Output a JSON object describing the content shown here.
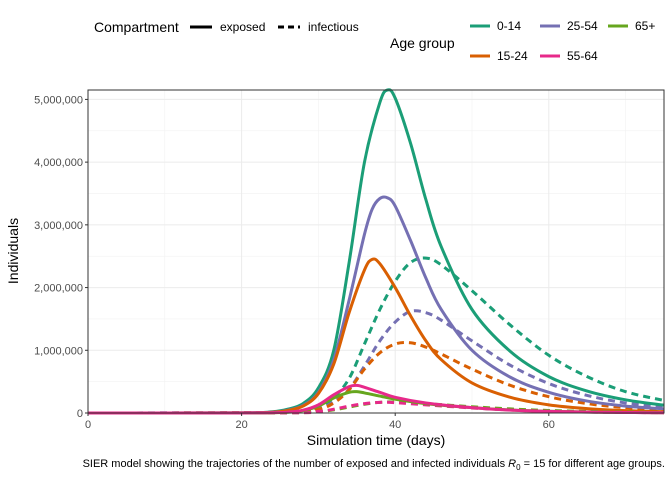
{
  "chart_data": {
    "type": "line",
    "xlabel": "Simulation time (days)",
    "ylabel": "Individuals",
    "xlim": [
      0,
      75
    ],
    "ylim": [
      0,
      5150000
    ],
    "x_ticks": [
      0,
      20,
      40,
      60
    ],
    "x_tick_labels": [
      "0",
      "20",
      "40",
      "60"
    ],
    "y_ticks": [
      0,
      1000000,
      2000000,
      3000000,
      4000000,
      5000000
    ],
    "y_tick_labels": [
      "0",
      "1,000,000",
      "2,000,000",
      "3,000,000",
      "4,000,000",
      "5,000,000"
    ],
    "grid": true,
    "caption_prefix": "SIER model showing the trajectories of the number of exposed and infected individuals ",
    "caption_math": "R",
    "caption_sub": "0",
    "caption_suffix": " = 15 for different age groups.",
    "legend_compartment": {
      "title": "Compartment",
      "entries": [
        {
          "label": "exposed",
          "dash": "solid"
        },
        {
          "label": "infectious",
          "dash": "dashed"
        }
      ]
    },
    "legend_age": {
      "title": "Age group",
      "entries": [
        {
          "label": "0-14",
          "color": "#1b9e77"
        },
        {
          "label": "25-54",
          "color": "#7570b3"
        },
        {
          "label": "65+",
          "color": "#66a61e"
        },
        {
          "label": "15-24",
          "color": "#d95f02"
        },
        {
          "label": "55-64",
          "color": "#e7298a"
        }
      ]
    },
    "series": [
      {
        "age": "0-14",
        "compartment": "exposed",
        "color": "#1b9e77",
        "dash": "solid",
        "x": [
          0,
          20,
          24,
          26,
          28,
          30,
          32,
          34,
          36,
          38,
          39,
          40,
          42,
          44,
          46,
          50,
          55,
          60,
          65,
          70,
          75
        ],
        "y": [
          0,
          2000,
          20000,
          60000,
          150000,
          400000,
          1000000,
          2400000,
          4000000,
          4950000,
          5150000,
          5020000,
          4300000,
          3400000,
          2650000,
          1650000,
          980000,
          580000,
          350000,
          210000,
          125000
        ]
      },
      {
        "age": "0-14",
        "compartment": "infectious",
        "color": "#1b9e77",
        "dash": "dashed",
        "x": [
          0,
          26,
          30,
          32,
          34,
          36,
          38,
          40,
          42,
          44,
          46,
          50,
          55,
          60,
          65,
          70,
          75
        ],
        "y": [
          0,
          10000,
          100000,
          250000,
          550000,
          1100000,
          1650000,
          2100000,
          2400000,
          2470000,
          2360000,
          1950000,
          1400000,
          920000,
          580000,
          340000,
          200000
        ]
      },
      {
        "age": "25-54",
        "compartment": "exposed",
        "color": "#7570b3",
        "dash": "solid",
        "x": [
          0,
          20,
          24,
          26,
          28,
          30,
          32,
          34,
          36,
          37,
          38,
          39,
          40,
          42,
          44,
          46,
          50,
          55,
          60,
          65,
          70,
          75
        ],
        "y": [
          0,
          1500,
          15000,
          45000,
          120000,
          330000,
          850000,
          1800000,
          2850000,
          3250000,
          3420000,
          3430000,
          3300000,
          2750000,
          2150000,
          1650000,
          1000000,
          570000,
          330000,
          190000,
          110000,
          65000
        ]
      },
      {
        "age": "25-54",
        "compartment": "infectious",
        "color": "#7570b3",
        "dash": "dashed",
        "x": [
          0,
          26,
          30,
          32,
          34,
          36,
          38,
          40,
          42,
          44,
          46,
          50,
          55,
          60,
          65,
          70,
          75
        ],
        "y": [
          0,
          8000,
          70000,
          180000,
          380000,
          750000,
          1150000,
          1450000,
          1620000,
          1600000,
          1480000,
          1150000,
          760000,
          470000,
          280000,
          160000,
          95000
        ]
      },
      {
        "age": "15-24",
        "compartment": "exposed",
        "color": "#d95f02",
        "dash": "solid",
        "x": [
          0,
          20,
          24,
          26,
          28,
          30,
          32,
          34,
          36,
          37,
          38,
          40,
          42,
          44,
          46,
          50,
          55,
          60,
          65,
          70,
          75
        ],
        "y": [
          0,
          1200,
          12000,
          40000,
          110000,
          310000,
          780000,
          1600000,
          2280000,
          2450000,
          2380000,
          2000000,
          1550000,
          1150000,
          850000,
          480000,
          250000,
          130000,
          70000,
          38000,
          20000
        ]
      },
      {
        "age": "15-24",
        "compartment": "infectious",
        "color": "#d95f02",
        "dash": "dashed",
        "x": [
          0,
          26,
          30,
          32,
          34,
          36,
          38,
          40,
          42,
          44,
          46,
          50,
          55,
          60,
          65,
          70,
          75
        ],
        "y": [
          0,
          6000,
          60000,
          160000,
          370000,
          700000,
          960000,
          1100000,
          1120000,
          1050000,
          940000,
          700000,
          440000,
          260000,
          150000,
          85000,
          48000
        ]
      },
      {
        "age": "55-64",
        "compartment": "exposed",
        "color": "#e7298a",
        "dash": "solid",
        "x": [
          0,
          20,
          24,
          26,
          28,
          30,
          32,
          34,
          35,
          36,
          38,
          40,
          44,
          50,
          55,
          60,
          65,
          70,
          75
        ],
        "y": [
          0,
          500,
          5000,
          15000,
          45000,
          130000,
          290000,
          420000,
          440000,
          410000,
          330000,
          250000,
          160000,
          85000,
          45000,
          25000,
          14000,
          8000,
          5000
        ]
      },
      {
        "age": "55-64",
        "compartment": "infectious",
        "color": "#e7298a",
        "dash": "dashed",
        "x": [
          0,
          26,
          30,
          32,
          34,
          36,
          38,
          40,
          44,
          50,
          55,
          60,
          65,
          70,
          75
        ],
        "y": [
          0,
          3000,
          25000,
          60000,
          110000,
          150000,
          170000,
          165000,
          130000,
          80000,
          48000,
          28000,
          16000,
          9000,
          5000
        ]
      },
      {
        "age": "65+",
        "compartment": "exposed",
        "color": "#66a61e",
        "dash": "solid",
        "x": [
          0,
          20,
          24,
          26,
          28,
          30,
          32,
          34,
          35,
          36,
          38,
          40,
          44,
          50,
          55,
          60,
          65,
          70,
          75
        ],
        "y": [
          0,
          400,
          4000,
          12000,
          38000,
          110000,
          240000,
          330000,
          340000,
          320000,
          270000,
          220000,
          150000,
          85000,
          48000,
          27000,
          15000,
          9000,
          5000
        ]
      },
      {
        "age": "65+",
        "compartment": "infectious",
        "color": "#66a61e",
        "dash": "dashed",
        "x": [
          0,
          26,
          30,
          32,
          34,
          36,
          38,
          40,
          44,
          50,
          55,
          60,
          65,
          70,
          75
        ],
        "y": [
          0,
          3000,
          20000,
          50000,
          95000,
          140000,
          170000,
          175000,
          150000,
          100000,
          65000,
          40000,
          25000,
          15000,
          9000
        ]
      }
    ]
  }
}
